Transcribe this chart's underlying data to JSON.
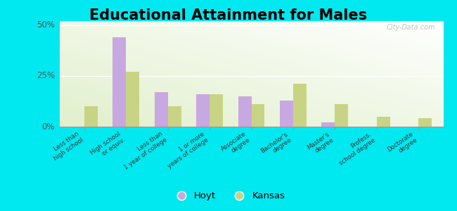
{
  "title": "Educational Attainment for Males",
  "categories": [
    "Less than\nhigh school",
    "High school\nor equiv.",
    "Less than\n1 year of college",
    "1 or more\nyears of college",
    "Associate\ndegree",
    "Bachelor's\ndegree",
    "Master's\ndegree",
    "Profess.\nschool degree",
    "Doctorate\ndegree"
  ],
  "hoyt_values": [
    0,
    44,
    17,
    16,
    15,
    13,
    2,
    0,
    0
  ],
  "kansas_values": [
    10,
    27,
    10,
    16,
    11,
    21,
    11,
    5,
    4
  ],
  "hoyt_color": "#c8a8e0",
  "kansas_color": "#c8d484",
  "ylim": [
    0,
    52
  ],
  "yticks": [
    0,
    25,
    50
  ],
  "ytick_labels": [
    "0%",
    "25%",
    "50%"
  ],
  "outer_bg": "#00e8f0",
  "title_fontsize": 15,
  "legend_labels": [
    "Hoyt",
    "Kansas"
  ],
  "watermark": "City-Data.com"
}
